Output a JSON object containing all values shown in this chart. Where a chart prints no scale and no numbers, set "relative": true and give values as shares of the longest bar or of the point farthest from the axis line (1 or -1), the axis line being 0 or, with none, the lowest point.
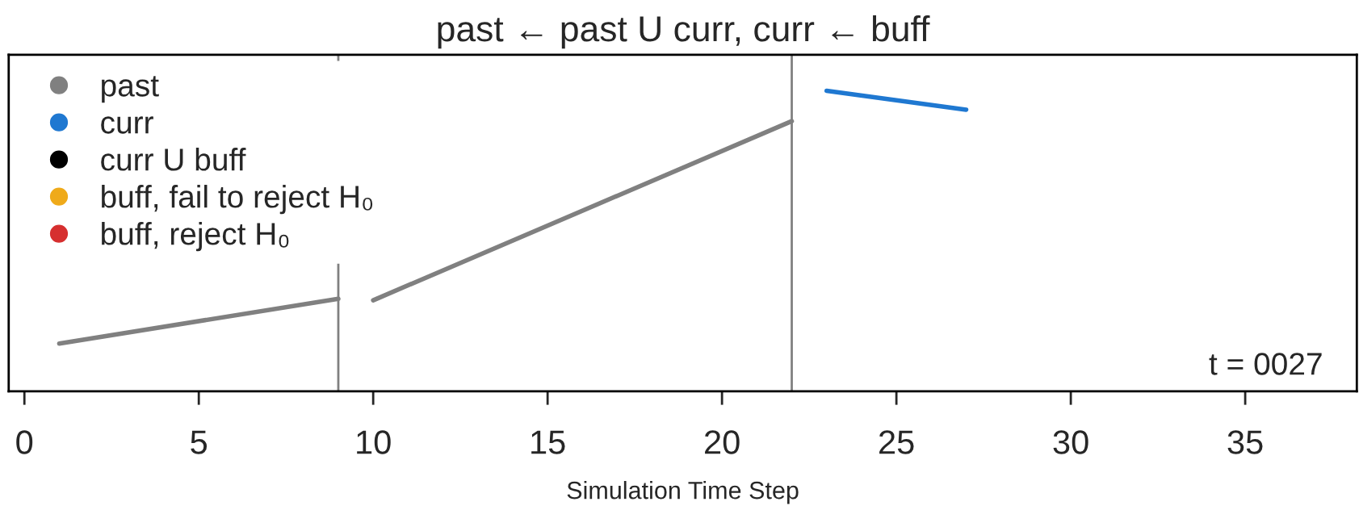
{
  "chart_data": {
    "type": "line",
    "title": "past ← past U curr, curr ← buff",
    "xlabel": "Simulation Time Step",
    "relative": true,
    "xlim": [
      -0.45,
      38.2
    ],
    "xticks": [
      0,
      5,
      10,
      15,
      20,
      25,
      30,
      35
    ],
    "series": [
      {
        "name": "past",
        "color": "#808080",
        "x": [
          1,
          9,
          9.5,
          10,
          22
        ],
        "values": [
          0.159,
          0.308,
          null,
          0.303,
          0.899
        ]
      },
      {
        "name": "curr",
        "color": "#1f78d1",
        "x": [
          23,
          27
        ],
        "values": [
          1,
          0.937
        ]
      },
      {
        "name": "curr U buff",
        "color": "#000000"
      },
      {
        "name": "buff, fail to reject H₀",
        "color": "#efaa1a"
      },
      {
        "name": "buff, reject H₀",
        "color": "#d62f2f"
      }
    ],
    "ref_lines": [
      {
        "axis": "x",
        "value": 9,
        "color": "#808080"
      },
      {
        "axis": "x",
        "value": 22,
        "color": "#808080"
      }
    ],
    "annotations": [
      "t = 0027"
    ],
    "legend": "top left",
    "grid": false
  }
}
